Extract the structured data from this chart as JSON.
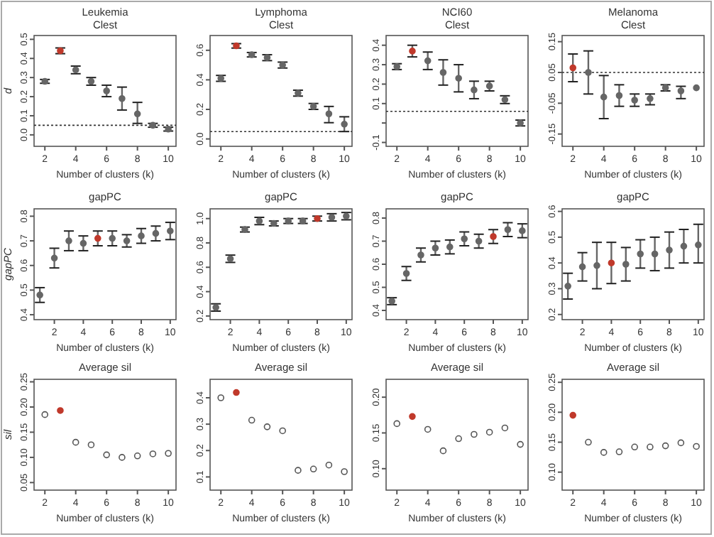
{
  "chart_data": [
    {
      "type": "scatter",
      "title": "Leukemia",
      "subtitle": "Clest",
      "ylabel": "d",
      "xlabel": "Number of clusters (k)",
      "x": [
        2,
        3,
        4,
        5,
        6,
        7,
        8,
        9,
        10
      ],
      "values": [
        0.28,
        0.44,
        0.34,
        0.28,
        0.23,
        0.19,
        0.11,
        0.05,
        0.03
      ],
      "errors": [
        0.01,
        0.015,
        0.02,
        0.02,
        0.03,
        [
          0.13,
          0.25
        ],
        [
          0.06,
          0.17
        ],
        0.01,
        0.01
      ],
      "color": "#666666",
      "colors": [
        "#666666",
        "#c0392b",
        "#666666",
        "#666666",
        "#666666",
        "#666666",
        "#666666",
        "#666666",
        "#666666"
      ],
      "marker": "circle",
      "xlim": [
        1.3,
        10.5
      ],
      "xticks": [
        2,
        4,
        6,
        8,
        10
      ],
      "ylim": [
        -0.06,
        0.52
      ],
      "yticks": [
        {
          "value": 0,
          "label": "0.0"
        },
        0.1,
        0.2,
        0.3,
        0.4,
        0.5
      ],
      "ref_lines": [
        {
          "axis": "y",
          "value": 0.05,
          "line_style": "dotted"
        }
      ]
    },
    {
      "type": "scatter",
      "title": "Lymphoma",
      "subtitle": "Clest",
      "xlabel": "Number of clusters (k)",
      "x": [
        2,
        3,
        4,
        5,
        6,
        7,
        8,
        9,
        10
      ],
      "values": [
        0.41,
        0.63,
        0.57,
        0.55,
        0.5,
        0.31,
        0.22,
        0.17,
        0.1
      ],
      "errors": [
        0.02,
        0.015,
        0.015,
        0.02,
        0.02,
        0.02,
        0.02,
        [
          0.11,
          0.22
        ],
        [
          0.05,
          0.15
        ]
      ],
      "color": "#666666",
      "colors": [
        "#666666",
        "#c0392b",
        "#666666",
        "#666666",
        "#666666",
        "#666666",
        "#666666",
        "#666666",
        "#666666"
      ],
      "marker": "circle",
      "xlim": [
        1.3,
        10.5
      ],
      "xticks": [
        2,
        4,
        6,
        8,
        10
      ],
      "ylim": [
        -0.05,
        0.7
      ],
      "yticks": [
        {
          "value": 0,
          "label": "0.0"
        },
        0.2,
        0.4,
        0.6
      ],
      "ref_lines": [
        {
          "axis": "y",
          "value": 0.05,
          "line_style": "dotted"
        }
      ]
    },
    {
      "type": "scatter",
      "title": "NCI60",
      "subtitle": "Clest",
      "xlabel": "Number of clusters (k)",
      "x": [
        2,
        3,
        4,
        5,
        6,
        7,
        8,
        9,
        10
      ],
      "values": [
        0.29,
        0.37,
        0.32,
        0.26,
        0.23,
        0.17,
        0.19,
        0.12,
        0.0
      ],
      "errors": [
        0.015,
        0.03,
        0.045,
        0.065,
        0.07,
        0.045,
        0.025,
        0.02,
        0.015
      ],
      "color": "#666666",
      "colors": [
        "#666666",
        "#c0392b",
        "#666666",
        "#666666",
        "#666666",
        "#666666",
        "#666666",
        "#666666",
        "#666666"
      ],
      "marker": "circle",
      "xlim": [
        1.3,
        10.5
      ],
      "xticks": [
        2,
        4,
        6,
        8,
        10
      ],
      "ylim": [
        -0.12,
        0.45
      ],
      "yticks": [
        -0.1,
        {
          "value": 0,
          "label": null
        },
        0.1,
        0.2,
        0.3,
        0.4
      ],
      "ref_lines": [
        {
          "axis": "y",
          "value": 0.06,
          "line_style": "dotted"
        }
      ]
    },
    {
      "type": "scatter",
      "title": "Melanoma",
      "subtitle": "Clest",
      "xlabel": "Number of clusters (k)",
      "x": [
        2,
        3,
        4,
        5,
        6,
        7,
        8,
        9,
        10
      ],
      "values": [
        0.065,
        0.05,
        -0.03,
        -0.025,
        -0.04,
        -0.035,
        0.0,
        -0.01,
        0.0
      ],
      "errors": [
        [
          0.02,
          0.11
        ],
        [
          -0.02,
          0.12
        ],
        [
          -0.1,
          0.04
        ],
        [
          -0.06,
          0.01
        ],
        [
          -0.06,
          -0.02
        ],
        [
          -0.055,
          -0.02
        ],
        [
          -0.01,
          0.01
        ],
        [
          -0.035,
          0.005
        ],
        null
      ],
      "color": "#666666",
      "colors": [
        "#c0392b",
        "#666666",
        "#666666",
        "#666666",
        "#666666",
        "#666666",
        "#666666",
        "#666666",
        "#666666"
      ],
      "marker": "circle",
      "xlim": [
        1.3,
        10.5
      ],
      "xticks": [
        2,
        4,
        6,
        8,
        10
      ],
      "ylim": [
        -0.19,
        0.17
      ],
      "yticks": [
        -0.15,
        -0.05,
        0.05,
        0.15
      ],
      "ref_lines": [
        {
          "axis": "y",
          "value": 0.05,
          "line_style": "dotted"
        }
      ]
    },
    {
      "type": "scatter",
      "title": "gapPC",
      "ylabel": "gapPC",
      "xlabel": "Number of clusters (k)",
      "x": [
        1,
        2,
        3,
        4,
        5,
        6,
        7,
        8,
        9,
        10
      ],
      "values": [
        0.48,
        0.63,
        0.7,
        0.69,
        0.71,
        0.71,
        0.7,
        0.72,
        0.73,
        0.74
      ],
      "errors": [
        0.03,
        0.04,
        0.04,
        0.03,
        0.03,
        0.03,
        0.025,
        0.03,
        0.03,
        0.035
      ],
      "color": "#666666",
      "colors": [
        "#666666",
        "#666666",
        "#666666",
        "#666666",
        "#c0392b",
        "#666666",
        "#666666",
        "#666666",
        "#666666",
        "#666666"
      ],
      "marker": "circle",
      "xlim": [
        0.6,
        10.4
      ],
      "xticks": [
        2,
        4,
        6,
        8,
        10
      ],
      "ylim": [
        0.38,
        0.83
      ],
      "yticks": [
        0.4,
        0.5,
        0.6,
        0.7,
        0.8
      ]
    },
    {
      "type": "scatter",
      "title": "gapPC",
      "xlabel": "Number of clusters (k)",
      "x": [
        1,
        2,
        3,
        4,
        5,
        6,
        7,
        8,
        9,
        10
      ],
      "values": [
        0.27,
        0.67,
        0.91,
        0.98,
        0.96,
        0.98,
        0.98,
        1.0,
        1.01,
        1.02
      ],
      "errors": [
        0.03,
        0.03,
        0.02,
        0.03,
        0.02,
        0.02,
        0.02,
        0.02,
        0.03,
        0.03
      ],
      "color": "#666666",
      "colors": [
        "#666666",
        "#666666",
        "#666666",
        "#666666",
        "#666666",
        "#666666",
        "#666666",
        "#c0392b",
        "#666666",
        "#666666"
      ],
      "marker": "circle",
      "xlim": [
        0.6,
        10.4
      ],
      "xticks": [
        2,
        4,
        6,
        8,
        10
      ],
      "ylim": [
        0.17,
        1.08
      ],
      "yticks": [
        0.2,
        0.4,
        0.6,
        0.8,
        {
          "value": 1,
          "label": "1.0"
        }
      ]
    },
    {
      "type": "scatter",
      "title": "gapPC",
      "xlabel": "Number of clusters (k)",
      "x": [
        1,
        2,
        3,
        4,
        5,
        6,
        7,
        8,
        9,
        10
      ],
      "values": [
        0.44,
        0.56,
        0.64,
        0.67,
        0.675,
        0.71,
        0.7,
        0.72,
        0.75,
        0.745
      ],
      "errors": [
        0.015,
        0.03,
        0.03,
        0.03,
        0.03,
        0.03,
        0.03,
        0.03,
        0.03,
        0.03
      ],
      "color": "#666666",
      "colors": [
        "#666666",
        "#666666",
        "#666666",
        "#666666",
        "#666666",
        "#666666",
        "#666666",
        "#c0392b",
        "#666666",
        "#666666"
      ],
      "marker": "circle",
      "xlim": [
        0.6,
        10.4
      ],
      "xticks": [
        2,
        4,
        6,
        8,
        10
      ],
      "ylim": [
        0.36,
        0.84
      ],
      "yticks": [
        0.4,
        0.5,
        0.6,
        0.7,
        0.8
      ]
    },
    {
      "type": "scatter",
      "title": "gapPC",
      "xlabel": "Number of clusters (k)",
      "x": [
        1,
        2,
        3,
        4,
        5,
        6,
        7,
        8,
        9,
        10
      ],
      "values": [
        0.31,
        0.385,
        0.39,
        0.4,
        0.395,
        0.435,
        0.435,
        0.45,
        0.465,
        0.47
      ],
      "errors": [
        [
          0.26,
          0.36
        ],
        [
          0.33,
          0.44
        ],
        [
          0.3,
          0.48
        ],
        [
          0.32,
          0.48
        ],
        [
          0.33,
          0.46
        ],
        [
          0.38,
          0.49
        ],
        [
          0.37,
          0.5
        ],
        [
          0.38,
          0.52
        ],
        [
          0.4,
          0.53
        ],
        [
          0.4,
          0.55
        ]
      ],
      "color": "#666666",
      "colors": [
        "#666666",
        "#666666",
        "#666666",
        "#c0392b",
        "#666666",
        "#666666",
        "#666666",
        "#666666",
        "#666666",
        "#666666"
      ],
      "marker": "circle",
      "xlim": [
        0.6,
        10.4
      ],
      "xticks": [
        2,
        4,
        6,
        8,
        10
      ],
      "ylim": [
        0.18,
        0.61
      ],
      "yticks": [
        0.2,
        0.3,
        0.4,
        0.5,
        0.6
      ]
    },
    {
      "type": "scatter",
      "title": "Average sil",
      "ylabel": "sil",
      "xlabel": "Number of clusters (k)",
      "x": [
        2,
        3,
        4,
        5,
        6,
        7,
        8,
        9,
        10
      ],
      "values": [
        0.185,
        0.193,
        0.13,
        0.125,
        0.105,
        0.1,
        0.103,
        0.107,
        0.108
      ],
      "color": "#555555",
      "colors": [
        "#555555",
        "#c0392b",
        "#555555",
        "#555555",
        "#555555",
        "#555555",
        "#555555",
        "#555555",
        "#555555"
      ],
      "marker": "circle",
      "xlim": [
        1.3,
        10.5
      ],
      "xticks": [
        2,
        4,
        6,
        8,
        10
      ],
      "ylim": [
        0.035,
        0.255
      ],
      "yticks": [
        0.05,
        {
          "value": 0.1,
          "label": "0.10"
        },
        0.15,
        {
          "value": 0.2,
          "label": "0.20"
        },
        0.25
      ]
    },
    {
      "type": "scatter",
      "title": "Average sil",
      "xlabel": "Number of clusters (k)",
      "x": [
        2,
        3,
        4,
        5,
        6,
        7,
        8,
        9,
        10
      ],
      "values": [
        0.4,
        0.42,
        0.315,
        0.29,
        0.275,
        0.125,
        0.13,
        0.145,
        0.12
      ],
      "color": "#555555",
      "colors": [
        "#555555",
        "#c0392b",
        "#555555",
        "#555555",
        "#555555",
        "#555555",
        "#555555",
        "#555555",
        "#555555"
      ],
      "marker": "circle",
      "xlim": [
        1.3,
        10.5
      ],
      "xticks": [
        2,
        4,
        6,
        8,
        10
      ],
      "ylim": [
        0.05,
        0.47
      ],
      "yticks": [
        0.1,
        0.2,
        0.3,
        0.4
      ]
    },
    {
      "type": "scatter",
      "title": "Average sil",
      "xlabel": "Number of clusters (k)",
      "x": [
        2,
        3,
        4,
        5,
        6,
        7,
        8,
        9,
        10
      ],
      "values": [
        0.163,
        0.173,
        0.155,
        0.125,
        0.142,
        0.148,
        0.151,
        0.157,
        0.134
      ],
      "color": "#555555",
      "colors": [
        "#555555",
        "#c0392b",
        "#555555",
        "#555555",
        "#555555",
        "#555555",
        "#555555",
        "#555555",
        "#555555"
      ],
      "marker": "circle",
      "xlim": [
        1.3,
        10.5
      ],
      "xticks": [
        2,
        4,
        6,
        8,
        10
      ],
      "ylim": [
        0.07,
        0.225
      ],
      "yticks": [
        {
          "value": 0.1,
          "label": "0.10"
        },
        0.15,
        {
          "value": 0.2,
          "label": "0.20"
        }
      ]
    },
    {
      "type": "scatter",
      "title": "Average sil",
      "xlabel": "Number of clusters (k)",
      "x": [
        2,
        3,
        4,
        5,
        6,
        7,
        8,
        9,
        10
      ],
      "values": [
        0.195,
        0.15,
        0.133,
        0.134,
        0.142,
        0.142,
        0.144,
        0.149,
        0.143
      ],
      "color": "#555555",
      "colors": [
        "#c0392b",
        "#555555",
        "#555555",
        "#555555",
        "#555555",
        "#555555",
        "#555555",
        "#555555",
        "#555555"
      ],
      "marker": "circle",
      "xlim": [
        1.3,
        10.5
      ],
      "xticks": [
        2,
        4,
        6,
        8,
        10
      ],
      "ylim": [
        0.07,
        0.255
      ],
      "yticks": [
        {
          "value": 0.1,
          "label": "0.10"
        },
        0.15,
        {
          "value": 0.2,
          "label": "0.20"
        },
        0.25
      ]
    }
  ]
}
